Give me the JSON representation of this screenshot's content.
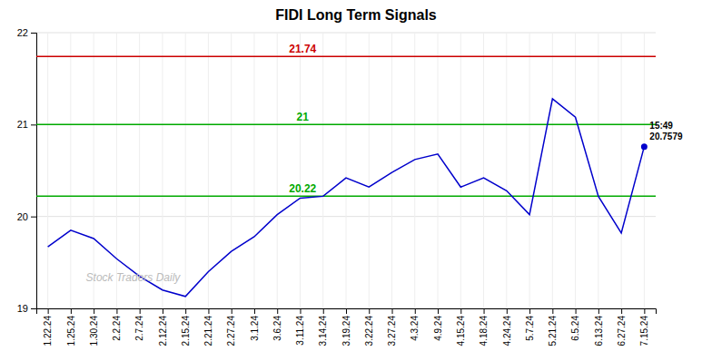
{
  "chart_data": {
    "type": "line",
    "title": "FIDI Long Term Signals",
    "categories": [
      "1.22.24",
      "1.25.24",
      "1.30.24",
      "2.2.24",
      "2.7.24",
      "2.12.24",
      "2.15.24",
      "2.21.24",
      "2.27.24",
      "3.1.24",
      "3.6.24",
      "3.11.24",
      "3.14.24",
      "3.19.24",
      "3.22.24",
      "3.27.24",
      "4.3.24",
      "4.9.24",
      "4.15.24",
      "4.18.24",
      "4.24.24",
      "5.7.24",
      "5.21.24",
      "6.5.24",
      "6.13.24",
      "6.27.24",
      "7.15.24"
    ],
    "values": [
      19.67,
      19.85,
      19.76,
      19.54,
      19.35,
      19.2,
      19.13,
      19.4,
      19.62,
      19.78,
      20.02,
      20.2,
      20.22,
      20.42,
      20.32,
      20.48,
      20.62,
      20.68,
      20.32,
      20.42,
      20.28,
      20.02,
      21.28,
      21.08,
      20.22,
      19.82,
      20.76
    ],
    "color": "#0000cc",
    "ylim": [
      19,
      22
    ],
    "yticks": [
      19,
      20,
      21,
      22
    ],
    "grid": true,
    "reference_lines": [
      {
        "value": 21.74,
        "label": "21.74",
        "color": "#cc0000"
      },
      {
        "value": 21,
        "label": "21",
        "color": "#00aa00"
      },
      {
        "value": 20.22,
        "label": "20.22",
        "color": "#00aa00"
      }
    ],
    "last_point": {
      "value": 20.7579,
      "label": "20.7579",
      "time": "15:49"
    },
    "watermark": "Stock Traders Daily"
  }
}
